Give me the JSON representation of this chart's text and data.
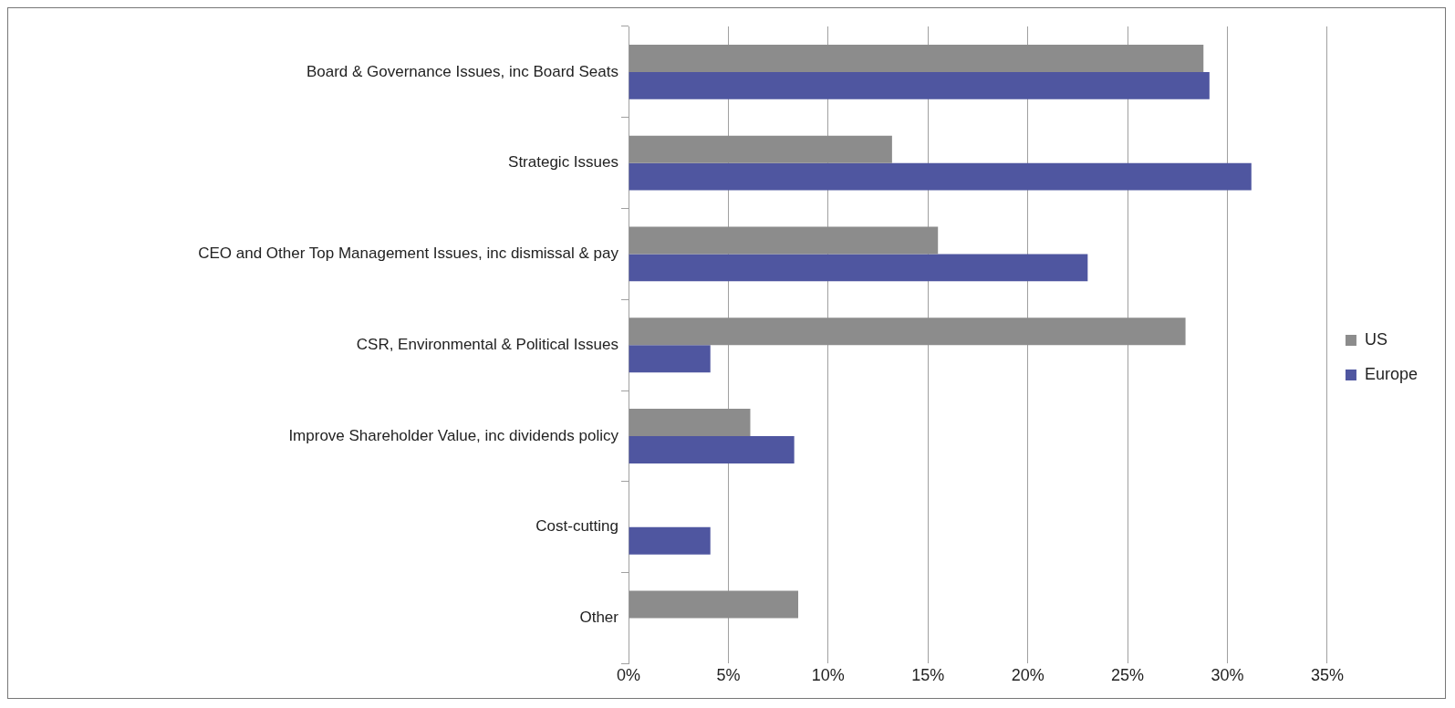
{
  "chart_data": {
    "type": "bar",
    "orientation": "horizontal",
    "categories": [
      "Board & Governance Issues, inc Board Seats",
      "Strategic Issues",
      "CEO and Other Top Management Issues, inc dismissal & pay",
      "CSR, Environmental & Political Issues",
      "Improve Shareholder Value, inc dividends policy",
      "Cost-cutting",
      "Other"
    ],
    "series": [
      {
        "name": "US",
        "color": "#8c8c8c",
        "values": [
          28.8,
          13.2,
          15.5,
          27.9,
          6.1,
          null,
          8.5
        ]
      },
      {
        "name": "Europe",
        "color": "#4f56a0",
        "values": [
          29.1,
          31.2,
          23.0,
          4.1,
          8.3,
          4.1,
          null
        ]
      }
    ],
    "xlim": [
      0,
      35
    ],
    "xticks": [
      {
        "value": 0,
        "label": "0%"
      },
      {
        "value": 5,
        "label": "5%"
      },
      {
        "value": 10,
        "label": "10%"
      },
      {
        "value": 15,
        "label": "15%"
      },
      {
        "value": 20,
        "label": "20%"
      },
      {
        "value": 25,
        "label": "25%"
      },
      {
        "value": 30,
        "label": "30%"
      },
      {
        "value": 35,
        "label": "35%"
      }
    ],
    "grid": "x",
    "legend": "right"
  }
}
